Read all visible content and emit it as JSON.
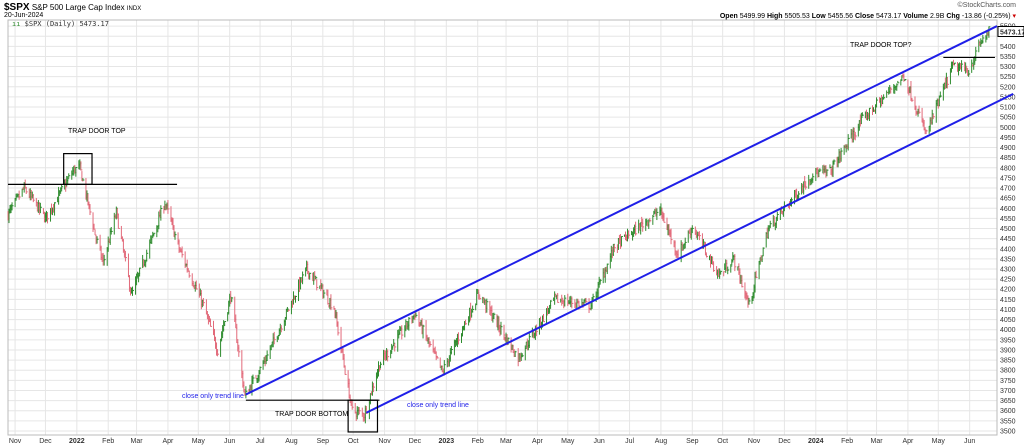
{
  "header": {
    "symbol": "$SPX",
    "name": "S&P 500 Large Cap Index",
    "exchange": "INDX",
    "date": "20-Jun-2024",
    "legend": "$SPX (Daily) 5473.17",
    "brand": "©StockCharts.com",
    "open_label": "Open",
    "open": "5499.99",
    "high_label": "High",
    "high": "5505.53",
    "low_label": "Low",
    "low": "5455.56",
    "close_label": "Close",
    "close": "5473.17",
    "volume_label": "Volume",
    "volume": "2.9B",
    "chg_label": "Chg",
    "chg": "-13.86 (-0.25%)",
    "chg_arrow": "▾"
  },
  "colors": {
    "up": "#2e8b2e",
    "down": "#e26a7a",
    "trend": "#1f1fe8",
    "annot": "#000000",
    "grid": "#e6e6e6"
  },
  "chart_data": {
    "type": "ohlc",
    "title": "$SPX S&P 500 Large Cap Index",
    "ylim": [
      3480,
      5530
    ],
    "ytick_step": 50,
    "yticks_from": 3500,
    "yticks_to": 5500,
    "last_price_label": "5473.17",
    "x_start": "2021-10-25",
    "x_end": "2024-06-28",
    "month_labels": [
      {
        "date": "2021-11-01",
        "label": "Nov"
      },
      {
        "date": "2021-12-01",
        "label": "Dec"
      },
      {
        "date": "2022-01-01",
        "label": "2022",
        "bold": true
      },
      {
        "date": "2022-02-01",
        "label": "Feb"
      },
      {
        "date": "2022-03-01",
        "label": "Mar"
      },
      {
        "date": "2022-04-01",
        "label": "Apr"
      },
      {
        "date": "2022-05-01",
        "label": "May"
      },
      {
        "date": "2022-06-01",
        "label": "Jun"
      },
      {
        "date": "2022-07-01",
        "label": "Jul"
      },
      {
        "date": "2022-08-01",
        "label": "Aug"
      },
      {
        "date": "2022-09-01",
        "label": "Sep"
      },
      {
        "date": "2022-10-01",
        "label": "Oct"
      },
      {
        "date": "2022-11-01",
        "label": "Nov"
      },
      {
        "date": "2022-12-01",
        "label": "Dec"
      },
      {
        "date": "2023-01-01",
        "label": "2023",
        "bold": true
      },
      {
        "date": "2023-02-01",
        "label": "Feb"
      },
      {
        "date": "2023-03-01",
        "label": "Mar"
      },
      {
        "date": "2023-04-01",
        "label": "Apr"
      },
      {
        "date": "2023-05-01",
        "label": "May"
      },
      {
        "date": "2023-06-01",
        "label": "Jun"
      },
      {
        "date": "2023-07-01",
        "label": "Jul"
      },
      {
        "date": "2023-08-01",
        "label": "Aug"
      },
      {
        "date": "2023-09-01",
        "label": "Sep"
      },
      {
        "date": "2023-10-01",
        "label": "Oct"
      },
      {
        "date": "2023-11-01",
        "label": "Nov"
      },
      {
        "date": "2023-12-01",
        "label": "Dec"
      },
      {
        "date": "2024-01-01",
        "label": "2024",
        "bold": true
      },
      {
        "date": "2024-02-01",
        "label": "Feb"
      },
      {
        "date": "2024-03-01",
        "label": "Mar"
      },
      {
        "date": "2024-04-01",
        "label": "Apr"
      },
      {
        "date": "2024-05-01",
        "label": "May"
      },
      {
        "date": "2024-06-01",
        "label": "Jun"
      }
    ],
    "close_keypoints": [
      [
        "2021-10-25",
        4570
      ],
      [
        "2021-11-10",
        4700
      ],
      [
        "2021-12-01",
        4550
      ],
      [
        "2021-12-29",
        4790
      ],
      [
        "2022-01-04",
        4800
      ],
      [
        "2022-01-20",
        4450
      ],
      [
        "2022-01-27",
        4330
      ],
      [
        "2022-02-09",
        4580
      ],
      [
        "2022-02-24",
        4170
      ],
      [
        "2022-03-29",
        4630
      ],
      [
        "2022-04-12",
        4400
      ],
      [
        "2022-05-06",
        4120
      ],
      [
        "2022-05-20",
        3900
      ],
      [
        "2022-06-02",
        4170
      ],
      [
        "2022-06-16",
        3670
      ],
      [
        "2022-07-06",
        3850
      ],
      [
        "2022-08-16",
        4300
      ],
      [
        "2022-09-12",
        4110
      ],
      [
        "2022-09-30",
        3600
      ],
      [
        "2022-10-12",
        3580
      ],
      [
        "2022-10-27",
        3830
      ],
      [
        "2022-12-01",
        4080
      ],
      [
        "2022-12-28",
        3790
      ],
      [
        "2023-02-02",
        4180
      ],
      [
        "2023-03-13",
        3860
      ],
      [
        "2023-04-18",
        4150
      ],
      [
        "2023-05-24",
        4120
      ],
      [
        "2023-06-16",
        4410
      ],
      [
        "2023-07-31",
        4590
      ],
      [
        "2023-08-18",
        4370
      ],
      [
        "2023-09-01",
        4510
      ],
      [
        "2023-09-27",
        4270
      ],
      [
        "2023-10-12",
        4350
      ],
      [
        "2023-10-27",
        4120
      ],
      [
        "2023-11-15",
        4500
      ],
      [
        "2023-12-29",
        4770
      ],
      [
        "2024-01-15",
        4780
      ],
      [
        "2024-02-15",
        5030
      ],
      [
        "2024-03-28",
        5254
      ],
      [
        "2024-04-19",
        4967
      ],
      [
        "2024-05-15",
        5300
      ],
      [
        "2024-05-31",
        5280
      ],
      [
        "2024-06-12",
        5420
      ],
      [
        "2024-06-20",
        5473
      ]
    ],
    "trend_lines": [
      {
        "label": "close only trend line",
        "from": [
          "2022-06-17",
          3680
        ],
        "to": [
          "2024-06-28",
          5500
        ]
      },
      {
        "label": "close only trend line",
        "from": [
          "2022-10-14",
          3590
        ],
        "to": [
          "2024-07-14",
          5165
        ]
      }
    ],
    "annotations": {
      "trap_top": "TRAP DOOR TOP",
      "trap_top_q": "TRAP DOOR TOP?",
      "trap_bottom": "TRAP DOOR BOTTOM",
      "trend_label_1": "close only trend line",
      "trend_label_2": "close only trend line"
    },
    "levels": {
      "top_line": {
        "from": "2021-10-25",
        "to": "2022-04-10",
        "price": 4718
      },
      "top_box": {
        "from": "2021-12-19",
        "to": "2022-01-16",
        "high": 4870,
        "low": 4718
      },
      "bottom_line": {
        "from": "2022-06-17",
        "to": "2022-10-27",
        "price": 3652
      },
      "bottom_box": {
        "from": "2022-09-26",
        "to": "2022-10-25",
        "high": 3652,
        "low": 3495
      },
      "top_q_line": {
        "from": "2024-05-06",
        "to": "2024-06-26",
        "price": 5345
      }
    }
  }
}
